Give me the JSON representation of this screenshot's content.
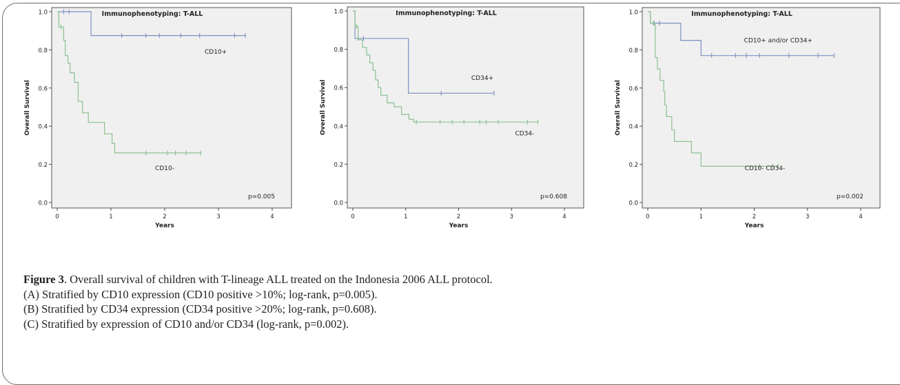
{
  "chart_data": [
    {
      "type": "line",
      "title": "Immunophenotyping: T-ALL",
      "xlabel": "Years",
      "ylabel": "Overall Survival",
      "xlim": [
        0,
        4
      ],
      "ylim": [
        0,
        1
      ],
      "x_ticks": [
        "0",
        "1",
        "2",
        "3",
        "4"
      ],
      "y_ticks": [
        "0.0",
        "0.2",
        "0.4",
        "0.6",
        "0.8",
        "1.0"
      ],
      "grid": false,
      "annotation": "p=0.005",
      "series": [
        {
          "name": "CD10+",
          "color": "#7b8fc0",
          "steps": [
            [
              0,
              1.0
            ],
            [
              0.63,
              0.875
            ],
            [
              3.5,
              0.875
            ]
          ],
          "censored": [
            [
              0.12,
              1.0
            ],
            [
              0.22,
              1.0
            ],
            [
              1.2,
              0.875
            ],
            [
              1.65,
              0.875
            ],
            [
              1.9,
              0.875
            ],
            [
              2.3,
              0.875
            ],
            [
              2.65,
              0.875
            ],
            [
              3.3,
              0.875
            ],
            [
              3.5,
              0.875
            ]
          ]
        },
        {
          "name": "CD10-",
          "color": "#8bc08f",
          "steps": [
            [
              0,
              1.0
            ],
            [
              0.03,
              0.92
            ],
            [
              0.12,
              0.85
            ],
            [
              0.15,
              0.77
            ],
            [
              0.2,
              0.73
            ],
            [
              0.24,
              0.68
            ],
            [
              0.32,
              0.63
            ],
            [
              0.39,
              0.53
            ],
            [
              0.47,
              0.47
            ],
            [
              0.58,
              0.42
            ],
            [
              0.88,
              0.36
            ],
            [
              1.02,
              0.31
            ],
            [
              1.07,
              0.26
            ],
            [
              2.67,
              0.26
            ]
          ],
          "censored": [
            [
              0.07,
              0.92
            ],
            [
              1.65,
              0.26
            ],
            [
              2.05,
              0.26
            ],
            [
              2.2,
              0.26
            ],
            [
              2.4,
              0.26
            ],
            [
              2.67,
              0.26
            ]
          ]
        }
      ],
      "labels": [
        {
          "text": "CD10+",
          "x": 2.95,
          "y": 0.78
        },
        {
          "text": "CD10-",
          "x": 2.0,
          "y": 0.17
        }
      ]
    },
    {
      "type": "line",
      "title": "Immunophenotyping: T-ALL",
      "xlabel": "Years",
      "ylabel": "Overall Survival",
      "xlim": [
        0,
        4
      ],
      "ylim": [
        0,
        1
      ],
      "x_ticks": [
        "0",
        "1",
        "2",
        "3",
        "4"
      ],
      "y_ticks": [
        "0.0",
        "0.2",
        "0.4",
        "0.6",
        "0.8",
        "1.0"
      ],
      "grid": false,
      "annotation": "p=0.608",
      "series": [
        {
          "name": "CD34+",
          "color": "#7b8fc0",
          "steps": [
            [
              0,
              1.0
            ],
            [
              0.04,
              0.857
            ],
            [
              1.05,
              0.571
            ],
            [
              2.67,
              0.571
            ]
          ],
          "censored": [
            [
              0.1,
              0.857
            ],
            [
              0.2,
              0.857
            ],
            [
              1.67,
              0.571
            ],
            [
              2.67,
              0.571
            ]
          ]
        },
        {
          "name": "CD34-",
          "color": "#8bc08f",
          "steps": [
            [
              0,
              1.0
            ],
            [
              0.04,
              0.92
            ],
            [
              0.1,
              0.85
            ],
            [
              0.18,
              0.81
            ],
            [
              0.26,
              0.77
            ],
            [
              0.32,
              0.73
            ],
            [
              0.38,
              0.69
            ],
            [
              0.43,
              0.64
            ],
            [
              0.48,
              0.6
            ],
            [
              0.53,
              0.56
            ],
            [
              0.65,
              0.52
            ],
            [
              0.78,
              0.5
            ],
            [
              0.92,
              0.46
            ],
            [
              1.06,
              0.435
            ],
            [
              1.15,
              0.42
            ],
            [
              3.5,
              0.42
            ]
          ],
          "censored": [
            [
              0.07,
              0.92
            ],
            [
              1.2,
              0.42
            ],
            [
              1.65,
              0.42
            ],
            [
              1.88,
              0.42
            ],
            [
              2.1,
              0.42
            ],
            [
              2.4,
              0.42
            ],
            [
              2.52,
              0.42
            ],
            [
              2.75,
              0.42
            ],
            [
              3.3,
              0.42
            ],
            [
              3.5,
              0.42
            ]
          ]
        }
      ],
      "labels": [
        {
          "text": "CD34+",
          "x": 2.45,
          "y": 0.64
        },
        {
          "text": "CD34-",
          "x": 3.25,
          "y": 0.35
        }
      ]
    },
    {
      "type": "line",
      "title": "Immunophenotyping: T-ALL",
      "xlabel": "Years",
      "ylabel": "Overall Survival",
      "xlim": [
        0,
        4
      ],
      "ylim": [
        0,
        1
      ],
      "x_ticks": [
        "0",
        "1",
        "2",
        "3",
        "4"
      ],
      "y_ticks": [
        "0.0",
        "0.2",
        "0.4",
        "0.6",
        "0.8",
        "1.0"
      ],
      "grid": false,
      "annotation": "p=0.002",
      "series": [
        {
          "name": "CD10+ and/or CD34+",
          "color": "#7b8fc0",
          "steps": [
            [
              0,
              1.0
            ],
            [
              0.05,
              0.94
            ],
            [
              0.62,
              0.85
            ],
            [
              1.0,
              0.77
            ],
            [
              3.5,
              0.77
            ]
          ],
          "censored": [
            [
              0.12,
              0.94
            ],
            [
              0.22,
              0.94
            ],
            [
              1.2,
              0.77
            ],
            [
              1.65,
              0.77
            ],
            [
              1.85,
              0.77
            ],
            [
              2.1,
              0.77
            ],
            [
              2.65,
              0.77
            ],
            [
              3.2,
              0.77
            ],
            [
              3.5,
              0.77
            ]
          ]
        },
        {
          "name": "CD10- CD34-",
          "color": "#8bc08f",
          "steps": [
            [
              0,
              1.0
            ],
            [
              0.05,
              0.94
            ],
            [
              0.14,
              0.76
            ],
            [
              0.18,
              0.7
            ],
            [
              0.23,
              0.64
            ],
            [
              0.3,
              0.58
            ],
            [
              0.32,
              0.51
            ],
            [
              0.35,
              0.45
            ],
            [
              0.45,
              0.38
            ],
            [
              0.5,
              0.32
            ],
            [
              0.82,
              0.26
            ],
            [
              1.0,
              0.19
            ],
            [
              2.45,
              0.19
            ]
          ],
          "censored": [
            [
              0.1,
              0.94
            ],
            [
              2.1,
              0.19
            ],
            [
              2.35,
              0.19
            ],
            [
              2.45,
              0.19
            ]
          ]
        }
      ],
      "labels": [
        {
          "text": "CD10+ and/or CD34+",
          "x": 2.45,
          "y": 0.84
        },
        {
          "text": "CD10- CD34-",
          "x": 2.2,
          "y": 0.17
        }
      ]
    }
  ],
  "caption": {
    "figure_label": "Figure 3",
    "line1": ". Overall survival of children with T-lineage ALL treated on the Indonesia 2006 ALL protocol.",
    "line2": "(A) Stratified by CD10 expression (CD10 positive >10%; log-rank, p=0.005).",
    "line3": "(B) Stratified by CD34 expression (CD34 positive >20%; log-rank, p=0.608).",
    "line4": "(C) Stratified by expression of CD10 and/or CD34 (log-rank, p=0.002)."
  }
}
